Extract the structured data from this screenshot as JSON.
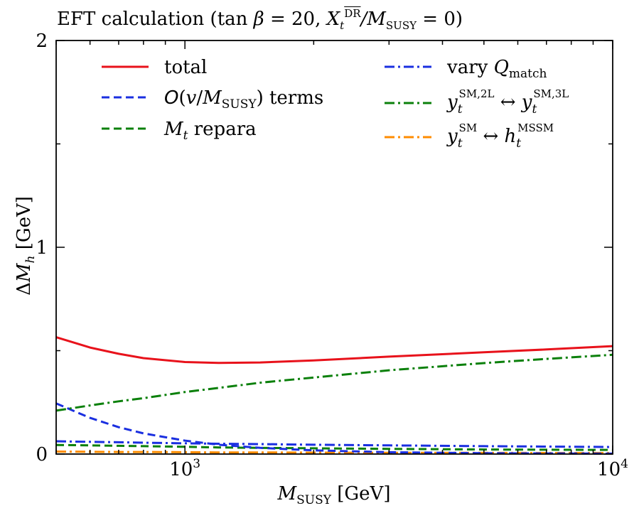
{
  "chart_data": {
    "type": "line",
    "title": "EFT calculation (tan β = 20, X_t^DR / M_SUSY = 0)",
    "title_parts": {
      "prefix": "EFT calculation (tan",
      "beta": "β",
      "eq20": " = 20, ",
      "X": "X",
      "t": "t",
      "DR": "DR",
      "slash": "/M",
      "SUSY": "SUSY",
      "eq0": " = 0)"
    },
    "xlabel": "M_SUSY [GeV]",
    "ylabel": "ΔM_h [GeV]",
    "xscale": "log",
    "xlim": [
      500,
      10000
    ],
    "ylim": [
      0,
      2
    ],
    "xticks": [
      {
        "value": 1000,
        "label": "10",
        "exp": "3"
      },
      {
        "value": 10000,
        "label": "10",
        "exp": "4"
      }
    ],
    "yticks": [
      {
        "value": 0,
        "label": "0"
      },
      {
        "value": 1,
        "label": "1"
      },
      {
        "value": 2,
        "label": "2"
      }
    ],
    "legend_location": "top",
    "x": [
      500,
      600,
      700,
      800,
      1000,
      1200,
      1500,
      2000,
      3000,
      5000,
      7000,
      10000
    ],
    "series": [
      {
        "name": "total",
        "color": "#e8121b",
        "dash": "solid",
        "values": [
          0.565,
          0.515,
          0.485,
          0.464,
          0.445,
          0.441,
          0.443,
          0.453,
          0.471,
          0.492,
          0.506,
          0.522
        ]
      },
      {
        "name": "O(v/M_SUSY) terms",
        "color": "#1a2fe0",
        "dash": "dashed",
        "values": [
          0.245,
          0.175,
          0.13,
          0.1,
          0.065,
          0.045,
          0.03,
          0.018,
          0.009,
          0.004,
          0.003,
          0.002
        ]
      },
      {
        "name": "M_t repara",
        "color": "#0b800b",
        "dash": "dashed",
        "values": [
          0.044,
          0.042,
          0.04,
          0.038,
          0.035,
          0.032,
          0.03,
          0.028,
          0.025,
          0.022,
          0.021,
          0.02
        ]
      },
      {
        "name": "vary Q_match",
        "color": "#1a2fe0",
        "dash": "dashdot",
        "values": [
          0.062,
          0.059,
          0.057,
          0.055,
          0.052,
          0.05,
          0.048,
          0.045,
          0.042,
          0.038,
          0.036,
          0.034
        ]
      },
      {
        "name": "y_t^{SM,2L} ↔ y_t^{SM,3L}",
        "color": "#0b800b",
        "dash": "dashdot",
        "values": [
          0.21,
          0.235,
          0.255,
          0.27,
          0.3,
          0.32,
          0.345,
          0.37,
          0.405,
          0.44,
          0.46,
          0.48
        ]
      },
      {
        "name": "y_t^{SM} ↔ h_t^{MSSM}",
        "color": "#ff8c00",
        "dash": "dashdot",
        "values": [
          0.012,
          0.011,
          0.01,
          0.01,
          0.009,
          0.008,
          0.008,
          0.007,
          0.006,
          0.006,
          0.005,
          0.005
        ]
      }
    ],
    "legend_text": {
      "total": "total",
      "oterm_O": "O",
      "oterm_open": "(",
      "oterm_v": "v",
      "oterm_slash": "/",
      "oterm_M": "M",
      "oterm_sub": "SUSY",
      "oterm_close": ") terms",
      "mt_M": "M",
      "mt_sub": "t",
      "mt_rest": " repara",
      "vq_text": "vary ",
      "vq_Q": "Q",
      "vq_sub": "match",
      "yy_y": "y",
      "yy_t": "t",
      "yy_sup1": "SM,2L",
      "yy_arrow": " ↔ ",
      "yy_sup2": "SM,3L",
      "yh_y": "y",
      "yh_t": "t",
      "yh_sup1": "SM",
      "yh_arrow": " ↔ ",
      "yh_h": "h",
      "yh_sup2": "MSSM"
    },
    "axis_text": {
      "x_M": "M",
      "x_sub": "SUSY",
      "x_unit": " [GeV]",
      "y_delta": "Δ",
      "y_M": "M",
      "y_sub": "h",
      "y_unit": " [GeV]"
    }
  }
}
